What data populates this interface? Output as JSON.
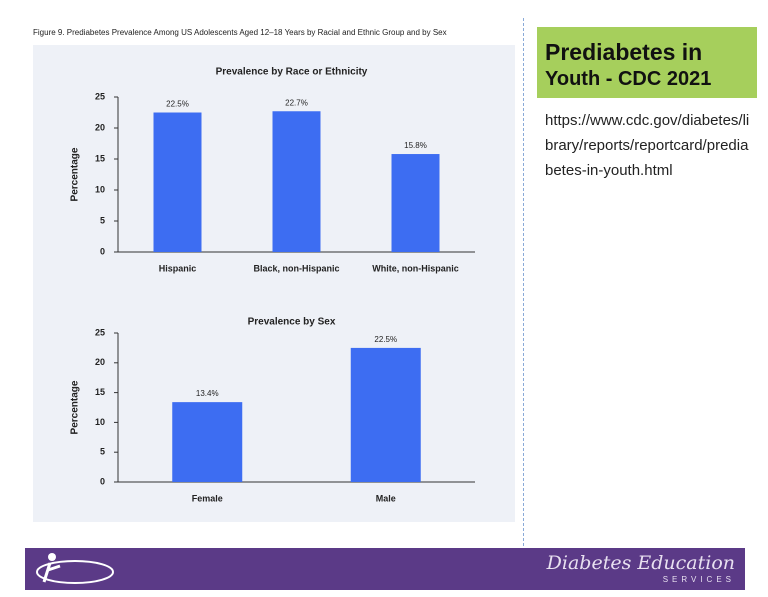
{
  "figure_caption": "Figure 9. Prediabetes Prevalence Among US Adolescents Aged 12–18 Years by Racial and Ethnic Group and by Sex",
  "chart_data": [
    {
      "type": "bar",
      "title": "Prevalence by Race or Ethnicity",
      "y_label": "Percentage",
      "categories": [
        "Hispanic",
        "Black, non-Hispanic",
        "White, non-Hispanic"
      ],
      "values": [
        22.5,
        22.7,
        15.8
      ],
      "value_labels": [
        "22.5%",
        "22.7%",
        "15.8%"
      ],
      "color": "#3d6df2",
      "ylim": [
        0,
        25
      ],
      "yticks": [
        0,
        5,
        10,
        15,
        20,
        25
      ]
    },
    {
      "type": "bar",
      "title": "Prevalence by Sex",
      "y_label": "Percentage",
      "categories": [
        "Female",
        "Male"
      ],
      "values": [
        13.4,
        22.5
      ],
      "value_labels": [
        "13.4%",
        "22.5%"
      ],
      "color": "#3d6df2",
      "ylim": [
        0,
        25
      ],
      "yticks": [
        0,
        5,
        10,
        15,
        20,
        25
      ]
    }
  ],
  "slide": {
    "title_lines": [
      "Prediabetes in",
      "Youth - CDC 2021"
    ],
    "url": "https://www.cdc.gov/diabetes/library/reports/reportcard/prediabetes-in-youth.html"
  },
  "footer": {
    "brand": "Diabetes Education",
    "brand_sub": "SERVICES"
  }
}
